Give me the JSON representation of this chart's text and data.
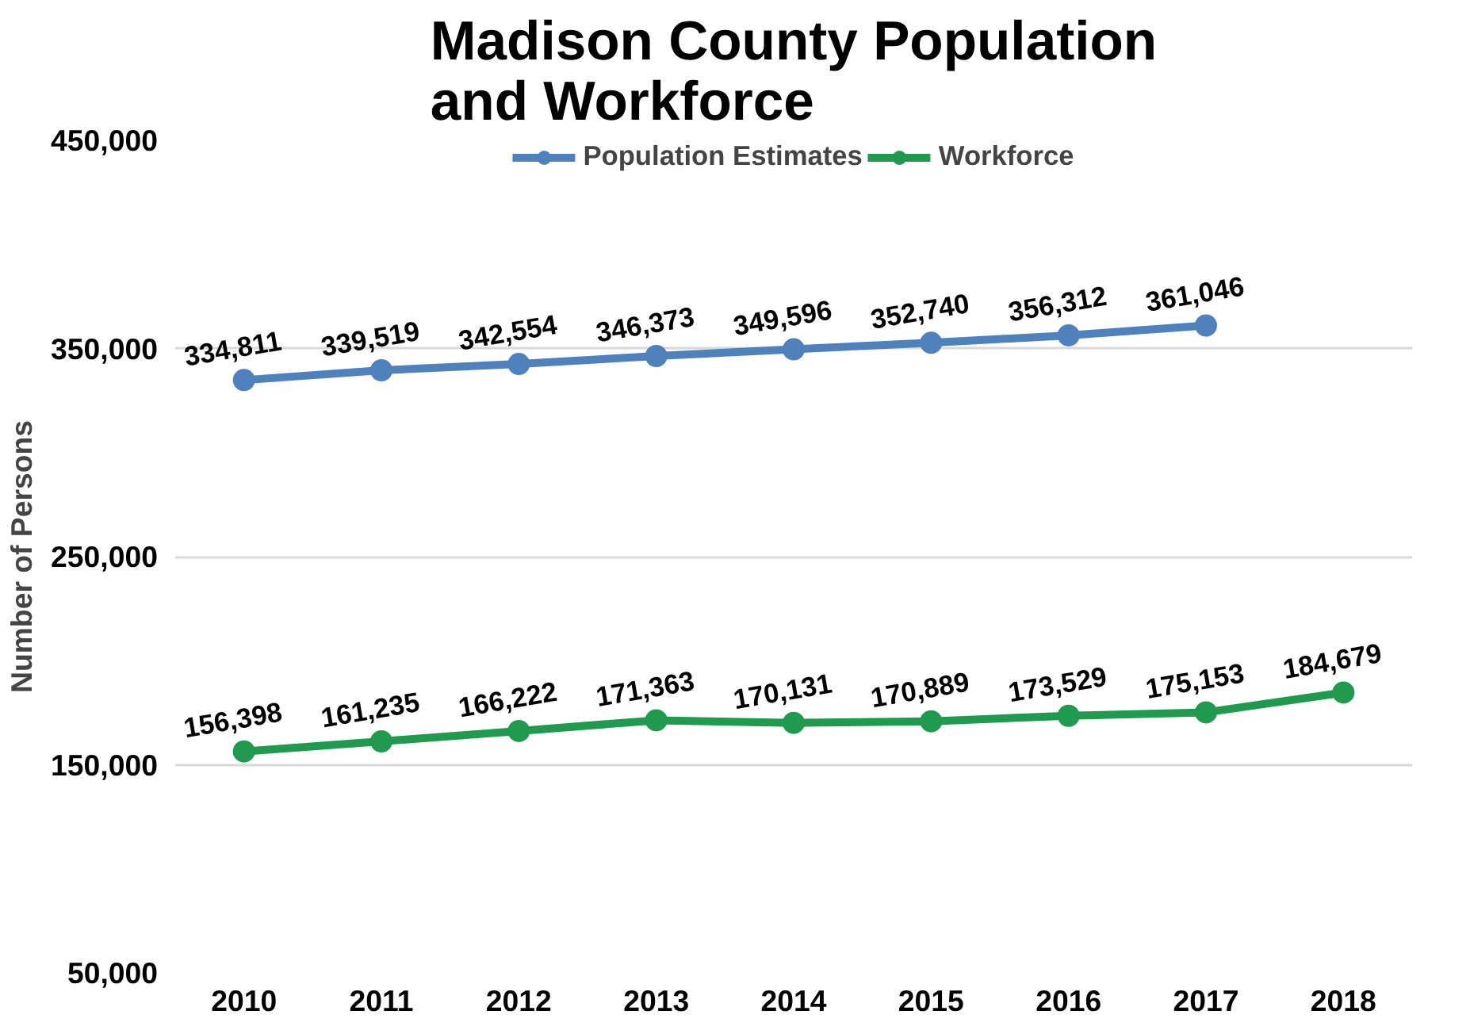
{
  "chart_data": {
    "type": "line",
    "title": "Madison County Population and Workforce",
    "ylabel": "Number of Persons",
    "categories": [
      "2010",
      "2011",
      "2012",
      "2013",
      "2014",
      "2015",
      "2016",
      "2017",
      "2018"
    ],
    "series": [
      {
        "name": "Population Estimates",
        "color": "#4f81bd",
        "values": [
          334811,
          339519,
          342554,
          346373,
          349596,
          352740,
          356312,
          361046,
          null
        ],
        "value_labels": [
          "334,811",
          "339,519",
          "342,554",
          "346,373",
          "349,596",
          "352,740",
          "356,312",
          "361,046",
          null
        ]
      },
      {
        "name": "Workforce",
        "color": "#1f9a4e",
        "values": [
          156398,
          161235,
          166222,
          171363,
          170131,
          170889,
          173529,
          175153,
          184679
        ],
        "value_labels": [
          "156,398",
          "161,235",
          "166,222",
          "171,363",
          "170,131",
          "170,889",
          "173,529",
          "175,153",
          "184,679"
        ]
      }
    ],
    "ylim": [
      50000,
      450000
    ],
    "yticks": [
      {
        "value": 50000,
        "label": "50,000"
      },
      {
        "value": 150000,
        "label": "150,000"
      },
      {
        "value": 250000,
        "label": "250,000"
      },
      {
        "value": 350000,
        "label": "350,000"
      },
      {
        "value": 450000,
        "label": "450,000"
      }
    ],
    "grid": "y",
    "legend": "top",
    "marker": "circle",
    "line_style": "solid"
  }
}
